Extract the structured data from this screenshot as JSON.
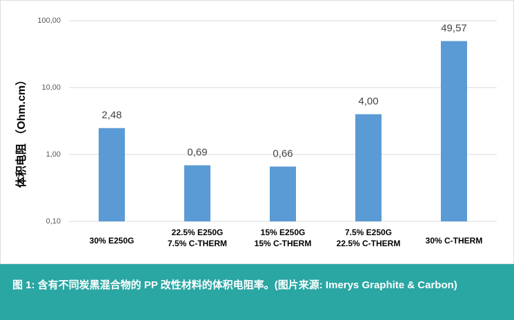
{
  "chart_data": {
    "type": "bar",
    "y_label": "体积电阻 （Ohm.cm）",
    "categories": [
      [
        "30% E250G"
      ],
      [
        "22.5% E250G",
        "7.5% C-THERM"
      ],
      [
        "15% E250G",
        "15% C-THERM"
      ],
      [
        "7.5% E250G",
        "22.5% C-THERM"
      ],
      [
        "30% C-THERM"
      ]
    ],
    "values": [
      2.48,
      0.69,
      0.66,
      4.0,
      49.57
    ],
    "value_labels": [
      "2,48",
      "0,69",
      "0,66",
      "4,00",
      "49,57"
    ],
    "color": "#5b9bd5",
    "log_scale": true,
    "grid": true,
    "ylim": [
      0.1,
      100
    ],
    "yticks": [
      {
        "value": 0.1,
        "label": "0,10"
      },
      {
        "value": 1,
        "label": "1,00"
      },
      {
        "value": 10,
        "label": "10,00"
      },
      {
        "value": 100,
        "label": "100,00"
      }
    ]
  },
  "caption": "图 1: 含有不同炭黑混合物的 PP 改性材料的体积电阻率。(图片来源: Imerys Graphite & Carbon)"
}
